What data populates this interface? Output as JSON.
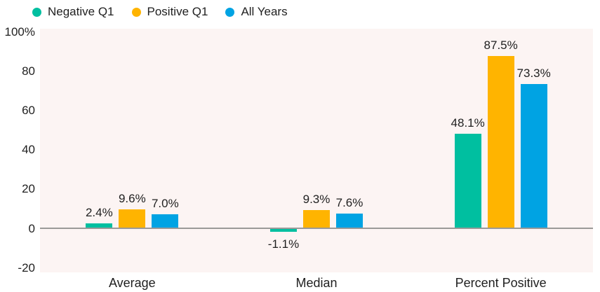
{
  "chart_data": {
    "type": "bar",
    "title": "",
    "xlabel": "",
    "ylabel": "",
    "categories": [
      "Average",
      "Median",
      "Percent Positive"
    ],
    "series": [
      {
        "name": "Negative Q1",
        "color": "#00BFA0",
        "values": [
          2.4,
          -1.1,
          48.1
        ],
        "labels": [
          "2.4%",
          "-1.1%",
          "48.1%"
        ]
      },
      {
        "name": "Positive Q1",
        "color": "#FFB400",
        "values": [
          9.6,
          9.3,
          87.5
        ],
        "labels": [
          "9.6%",
          "9.3%",
          "87.5%"
        ]
      },
      {
        "name": "All Years",
        "color": "#00A3E3",
        "values": [
          7.0,
          7.6,
          73.3
        ],
        "labels": [
          "7.0%",
          "7.6%",
          "73.3%"
        ]
      }
    ],
    "ylim": [
      -20,
      100
    ],
    "yticks": [
      {
        "value": 100,
        "label": "100%"
      },
      {
        "value": 80,
        "label": "80"
      },
      {
        "value": 60,
        "label": "60"
      },
      {
        "value": 40,
        "label": "40"
      },
      {
        "value": 20,
        "label": "20"
      },
      {
        "value": 0,
        "label": "0"
      },
      {
        "value": -20,
        "label": "-20"
      }
    ],
    "legend_position": "top",
    "grid": false,
    "colors": {
      "plot_background": "#FCF4F3",
      "zero_line": "#9B9A98",
      "text": "#1F1F1F",
      "page_background": "#FFFFFF"
    }
  }
}
